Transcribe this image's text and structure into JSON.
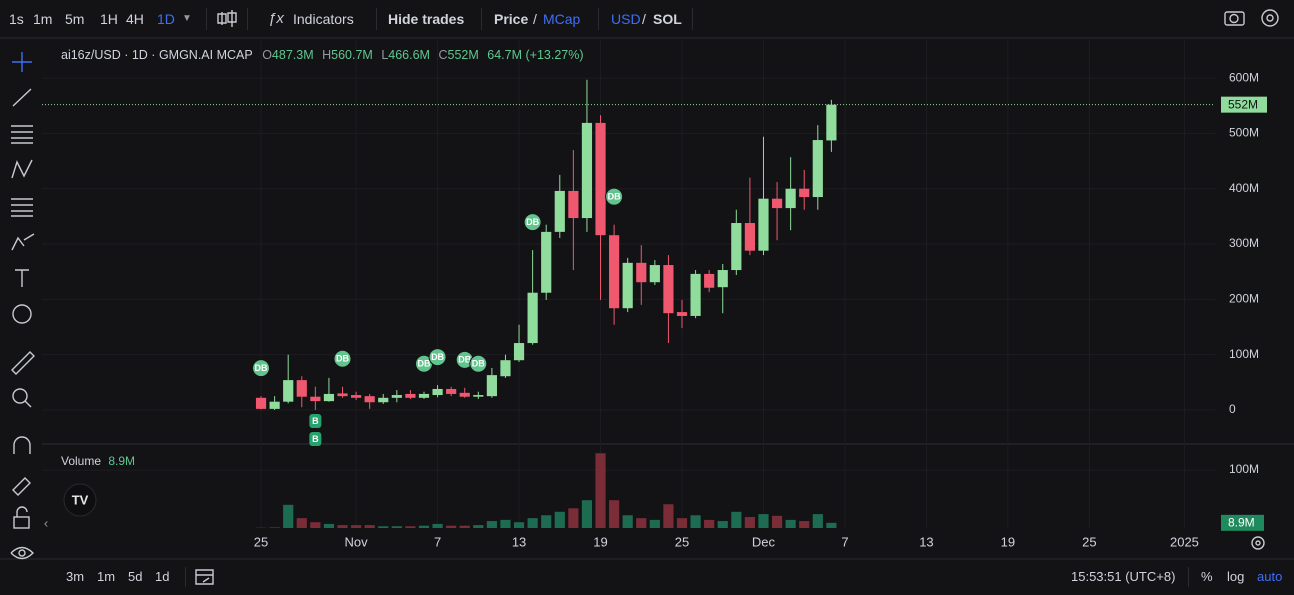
{
  "toolbar": {
    "intervals": [
      "1s",
      "1m",
      "5m",
      "1H",
      "4H",
      "1D"
    ],
    "indicators": "Indicators",
    "hide_trades": "Hide trades",
    "price": "Price",
    "sep1": "/",
    "mcap": "MCap",
    "usd": "USD",
    "sep2": "/",
    "sol": "SOL"
  },
  "legend": {
    "symbol": "ai16z/USD · 1D · GMGN.AI MCAP",
    "items": [
      {
        "key": "O",
        "value": "487.3M"
      },
      {
        "key": "H",
        "value": "560.7M"
      },
      {
        "key": "L",
        "value": "466.6M"
      },
      {
        "key": "C",
        "value": "552M"
      }
    ],
    "change": "64.7M (+13.27%)"
  },
  "volume_legend": {
    "title": "Volume",
    "value": "8.9M"
  },
  "collapse": "‹",
  "chart_data": {
    "type": "candlestick",
    "x": [
      0,
      1,
      2,
      3,
      4,
      5,
      6,
      7,
      8,
      9,
      10,
      11,
      12,
      13,
      14,
      15,
      16,
      17,
      18,
      19,
      20,
      21,
      22,
      23,
      24,
      25,
      26,
      27,
      28,
      29,
      30,
      31,
      32,
      33,
      34,
      35,
      36,
      37,
      38,
      39,
      40,
      41,
      42
    ],
    "open": [
      22,
      2,
      15,
      54,
      24,
      16,
      30,
      27,
      25,
      14,
      22,
      29,
      22,
      27,
      38,
      31,
      24,
      25,
      61,
      90,
      121,
      212,
      322,
      396,
      347,
      519,
      316,
      184,
      266,
      231,
      262,
      177,
      170,
      246,
      222,
      253,
      338,
      288,
      382,
      365,
      400,
      385,
      487.3
    ],
    "high": [
      25,
      25,
      100,
      61,
      42,
      58,
      42,
      33,
      29,
      29,
      36,
      36,
      33,
      45,
      42,
      40,
      33,
      76,
      100,
      154,
      289,
      335,
      425,
      470,
      597,
      533,
      335,
      275,
      298,
      271,
      280,
      199,
      253,
      253,
      264,
      362,
      420,
      494,
      412,
      457,
      434,
      515,
      560.7
    ],
    "low": [
      1,
      0,
      12,
      5,
      0,
      15,
      22,
      18,
      2,
      11,
      14,
      20,
      20,
      23,
      25,
      22,
      20,
      22,
      58,
      87,
      118,
      199,
      311,
      253,
      322,
      199,
      154,
      177,
      190,
      226,
      121,
      148,
      166,
      213,
      175,
      244,
      280,
      280,
      307,
      325,
      362,
      362,
      466.6
    ],
    "close": [
      2,
      15,
      54,
      24,
      16,
      29,
      25,
      22,
      14,
      22,
      27,
      22,
      29,
      38,
      29,
      24,
      27,
      63,
      90,
      121,
      212,
      322,
      396,
      347,
      519,
      316,
      184,
      266,
      231,
      262,
      175,
      170,
      246,
      221,
      253,
      338,
      288,
      382,
      365,
      400,
      385,
      488,
      552
    ],
    "volume": [
      0.5,
      0.8,
      40,
      17,
      10,
      7,
      5,
      5,
      5,
      3,
      3,
      3,
      4,
      7,
      4,
      4,
      5,
      12,
      14,
      10,
      17,
      22,
      28,
      34,
      48,
      129,
      48,
      22,
      17,
      14,
      41,
      17,
      22,
      14,
      12,
      28,
      19,
      24,
      21,
      14,
      12,
      24,
      8.9
    ],
    "up_color": "#8fdc9c",
    "down_color": "#f0586f",
    "volume_up_color": "#1d6b50",
    "volume_down_color": "#7a2c37",
    "xlim": [
      -16.13,
      70.25
    ],
    "xticks": [
      {
        "value": 0,
        "label": "25"
      },
      {
        "value": 7,
        "label": "Nov"
      },
      {
        "value": 13,
        "label": "7"
      },
      {
        "value": 19,
        "label": "13"
      },
      {
        "value": 25,
        "label": "19"
      },
      {
        "value": 31,
        "label": "25"
      },
      {
        "value": 37,
        "label": "Dec"
      },
      {
        "value": 43,
        "label": "7"
      },
      {
        "value": 49,
        "label": "13"
      },
      {
        "value": 55,
        "label": "19"
      },
      {
        "value": 61,
        "label": "25"
      },
      {
        "value": 68,
        "label": "2025"
      }
    ],
    "ylim": [
      -61.5,
      672.5
    ],
    "yticks": [
      0,
      {
        "value": 100,
        "label": "100M"
      },
      {
        "value": 200,
        "label": "200M"
      },
      {
        "value": 300,
        "label": "300M"
      },
      {
        "value": 400,
        "label": "400M"
      },
      {
        "value": 500,
        "label": "500M"
      },
      {
        "value": 600,
        "label": "600M"
      }
    ],
    "volume_ylim": [
      0,
      145
    ],
    "volume_yticks": [
      {
        "value": 100,
        "label": "100M"
      }
    ],
    "grid": true,
    "last_close_label": "552M",
    "last_volume_label": "8.9M",
    "markers": [
      {
        "x": 0,
        "label": "DB"
      },
      {
        "x": 6,
        "label": "DB"
      },
      {
        "x": 12,
        "label": "DB"
      },
      {
        "x": 13,
        "label": "DB"
      },
      {
        "x": 15,
        "label": "DB"
      },
      {
        "x": 16,
        "label": "DB"
      },
      {
        "x": 20,
        "label": "DB"
      },
      {
        "x": 26,
        "label": "DB"
      },
      {
        "x": 4,
        "label": "B"
      },
      {
        "x": 4,
        "label": "B"
      }
    ]
  },
  "bottom_bar": {
    "ranges": [
      "3m",
      "1m",
      "5d",
      "1d"
    ],
    "clock": "15:53:51 (UTC+8)",
    "percent": "%",
    "log": "log",
    "auto": "auto"
  }
}
